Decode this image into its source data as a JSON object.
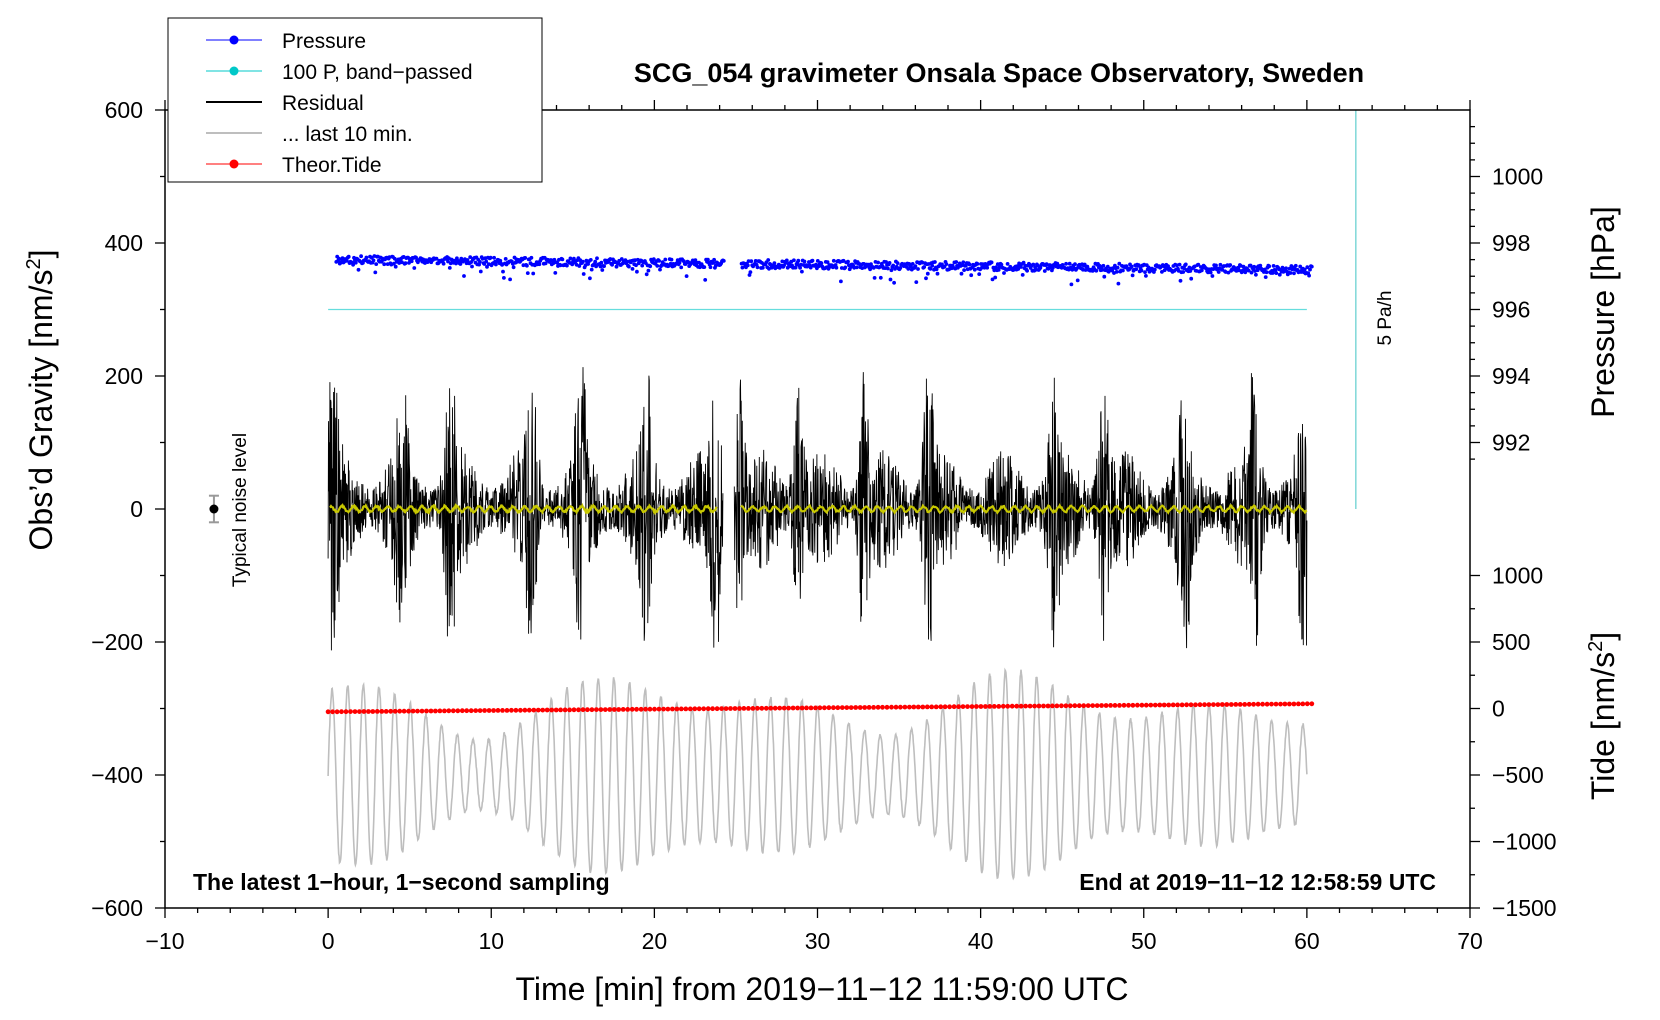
{
  "chart_data": {
    "type": "line",
    "title": "SCG_054 gravimeter Onsala Space Observatory, Sweden",
    "xlabel": "Time [min] from 2019−11−12 11:59:00 UTC",
    "ylabel_left": "Obs’d Gravity [nm/s",
    "ylabel_left_sup": "2",
    "ylabel_left_close": "]",
    "ylabel_right_pressure": "Pressure [hPa]",
    "ylabel_right_tide": "Tide [nm/s",
    "ylabel_right_tide_sup": "2",
    "ylabel_right_tide_close": "]",
    "xlim": [
      -10,
      70
    ],
    "ylim": [
      -600,
      600
    ],
    "x_ticks": [
      -10,
      0,
      10,
      20,
      30,
      40,
      50,
      60,
      70
    ],
    "x_tick_labels": [
      "−10",
      "0",
      "10",
      "20",
      "30",
      "40",
      "50",
      "60",
      "70"
    ],
    "y_ticks": [
      -600,
      -400,
      -200,
      0,
      200,
      400,
      600
    ],
    "y_tick_labels": [
      "−600",
      "−400",
      "−200",
      "0",
      "200",
      "400",
      "600"
    ],
    "pressure_axis": {
      "ticks": [
        992,
        994,
        996,
        998,
        1000
      ],
      "tick_labels": [
        "992",
        "994",
        "996",
        "998",
        "1000"
      ],
      "map": {
        "value_a": 996,
        "gravity_a": 300,
        "value_b": 1000,
        "gravity_b": 500
      }
    },
    "tide_axis": {
      "ticks": [
        -1500,
        -1000,
        -500,
        0,
        500,
        1000
      ],
      "tick_labels": [
        "−1500",
        "−1000",
        "−500",
        "0",
        "500",
        "1000"
      ],
      "map": {
        "value_a": 0,
        "gravity_a": -300,
        "value_b": 1000,
        "gravity_b": -100
      }
    },
    "legend": [
      {
        "label": "Pressure",
        "color": "#0000ff",
        "marker": true
      },
      {
        "label": "100 P, band−passed",
        "color": "#00c8c8",
        "marker": true
      },
      {
        "label": "Residual",
        "color": "#000000",
        "marker": false
      },
      {
        "label": "... last 10 min.",
        "color": "#bebebe",
        "marker": false
      },
      {
        "label": "Theor.Tide",
        "color": "#ff0000",
        "marker": true
      }
    ],
    "annotations": {
      "bottom_left": "The latest 1−hour, 1−second sampling",
      "bottom_right": "End at 2019−11−12 12:58:59 UTC",
      "noise_label": "Typical noise level",
      "rate_label": "5 Pa/h"
    },
    "series": [
      {
        "name": "Pressure",
        "color": "#0000ff",
        "unit": "hPa",
        "start": 997.5,
        "end": 997.2,
        "gap_minutes": [
          24.3,
          25.3
        ]
      },
      {
        "name": "100 P, band-passed",
        "color": "#00c8c8",
        "unit": "hPa",
        "value": 996.0,
        "x_range": [
          0,
          60
        ]
      },
      {
        "name": "Residual",
        "color": "#000000",
        "unit": "nm/s2",
        "center": 0,
        "envelope_max": 215,
        "x_range": [
          0,
          60
        ],
        "bursts_minutes": [
          0.3,
          4.5,
          7.5,
          12.5,
          15.5,
          19.5,
          23.8,
          25.2,
          28.8,
          32.8,
          36.8,
          44.5,
          47.5,
          52.5,
          56.8,
          59.8
        ]
      },
      {
        "name": "Residual (smoothed)",
        "color": "#c8c800",
        "unit": "nm/s2",
        "center": 0
      },
      {
        "name": "... last 10 min.",
        "color": "#bebebe",
        "unit": "nm/s2",
        "center": -400,
        "amplitude_range": [
          40,
          160
        ],
        "x_range": [
          0,
          60
        ]
      },
      {
        "name": "Theor.Tide",
        "color": "#ff0000",
        "unit": "nm/s2",
        "start": -305,
        "end": -293,
        "x_range": [
          0,
          60.3
        ]
      },
      {
        "name": "Typical noise level",
        "color": "#000000",
        "x": -7,
        "value": 0,
        "error": 20
      }
    ],
    "rate_indicator": {
      "x": 63,
      "from": 0,
      "to": 600,
      "color": "#7fd8d8"
    }
  }
}
